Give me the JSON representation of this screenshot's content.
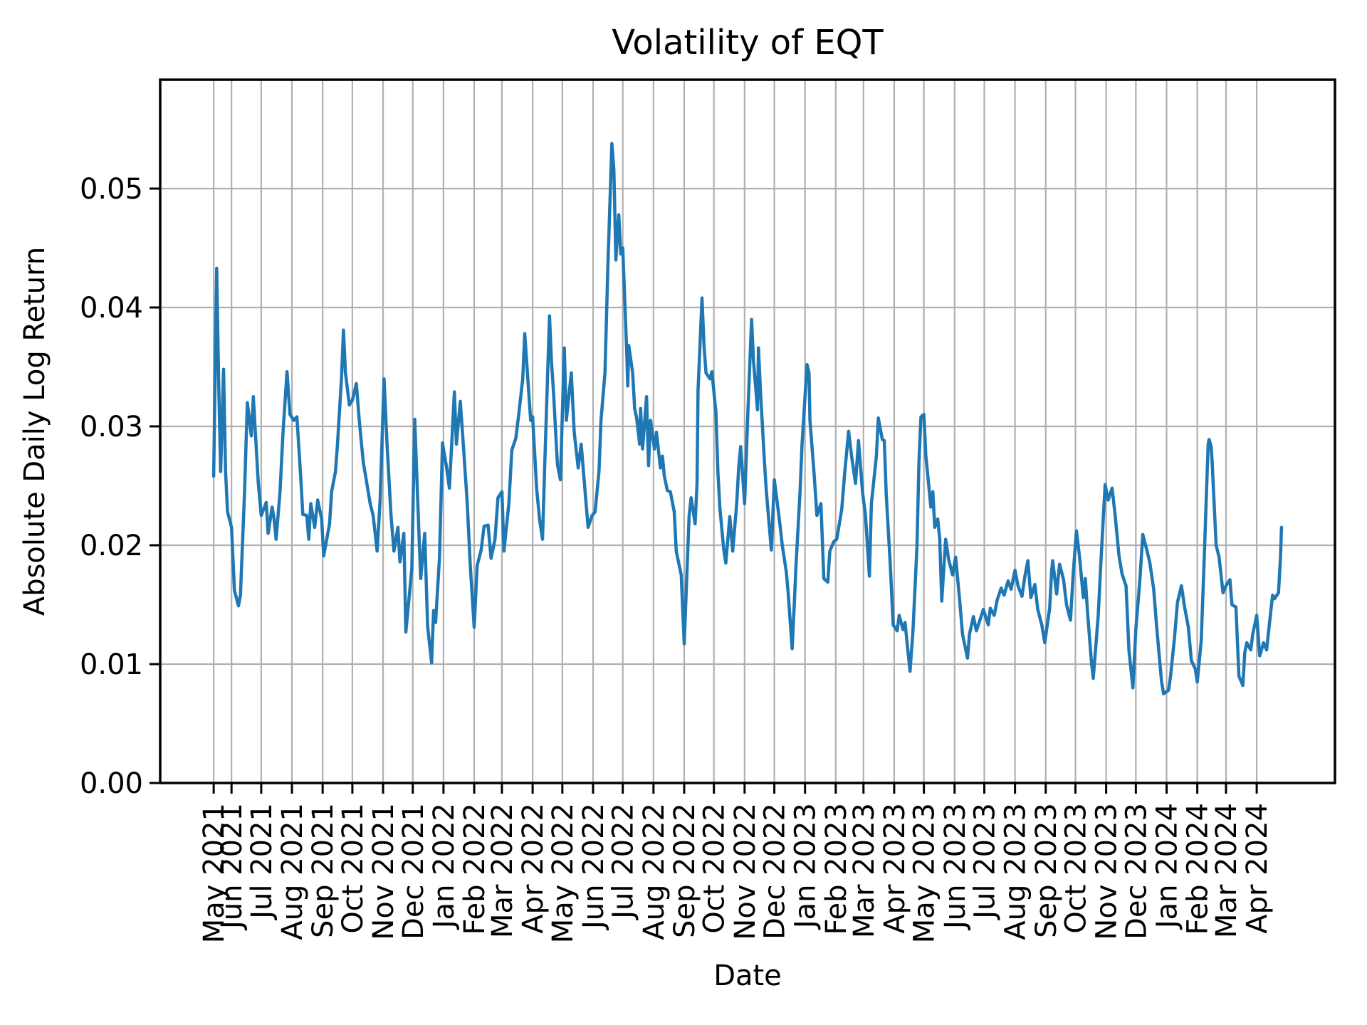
{
  "figure": {
    "title": "Volatility of EQT",
    "x_axis_label": "Date",
    "y_axis_label": "Absolute Daily Log Return"
  },
  "chart_data": {
    "type": "line",
    "title": "Volatility of EQT",
    "xlabel": "Date",
    "ylabel": "Absolute Daily Log Return",
    "grid": true,
    "legend": null,
    "line_color": "#1f77b4",
    "grid_color": "#b0b0b0",
    "axis_color": "#000000",
    "background_color": "#ffffff",
    "ylim": [
      0.0,
      0.05916
    ],
    "yticks": [
      0.0,
      0.01,
      0.02,
      0.03,
      0.04,
      0.05
    ],
    "ytick_labels": [
      "0.00",
      "0.01",
      "0.02",
      "0.03",
      "0.04",
      "0.05"
    ],
    "xlim_dates": [
      "2021-03-21",
      "2024-06-19"
    ],
    "xticks": [
      {
        "date": "2021-05-14",
        "label": "May 2021"
      },
      {
        "date": "2021-06-01",
        "label": "Jun 2021"
      },
      {
        "date": "2021-07-01",
        "label": "Jul 2021"
      },
      {
        "date": "2021-08-01",
        "label": "Aug 2021"
      },
      {
        "date": "2021-09-01",
        "label": "Sep 2021"
      },
      {
        "date": "2021-10-01",
        "label": "Oct 2021"
      },
      {
        "date": "2021-11-01",
        "label": "Nov 2021"
      },
      {
        "date": "2021-12-01",
        "label": "Dec 2021"
      },
      {
        "date": "2022-01-01",
        "label": "Jan 2022"
      },
      {
        "date": "2022-02-01",
        "label": "Feb 2022"
      },
      {
        "date": "2022-03-01",
        "label": "Mar 2022"
      },
      {
        "date": "2022-04-01",
        "label": "Apr 2022"
      },
      {
        "date": "2022-05-01",
        "label": "May 2022"
      },
      {
        "date": "2022-06-01",
        "label": "Jun 2022"
      },
      {
        "date": "2022-07-01",
        "label": "Jul 2022"
      },
      {
        "date": "2022-08-01",
        "label": "Aug 2022"
      },
      {
        "date": "2022-09-01",
        "label": "Sep 2022"
      },
      {
        "date": "2022-10-01",
        "label": "Oct 2022"
      },
      {
        "date": "2022-11-01",
        "label": "Nov 2022"
      },
      {
        "date": "2022-12-01",
        "label": "Dec 2022"
      },
      {
        "date": "2023-01-01",
        "label": "Jan 2023"
      },
      {
        "date": "2023-02-01",
        "label": "Feb 2023"
      },
      {
        "date": "2023-03-01",
        "label": "Mar 2023"
      },
      {
        "date": "2023-04-01",
        "label": "Apr 2023"
      },
      {
        "date": "2023-05-01",
        "label": "May 2023"
      },
      {
        "date": "2023-06-01",
        "label": "Jun 2023"
      },
      {
        "date": "2023-07-01",
        "label": "Jul 2023"
      },
      {
        "date": "2023-08-01",
        "label": "Aug 2023"
      },
      {
        "date": "2023-09-01",
        "label": "Sep 2023"
      },
      {
        "date": "2023-10-01",
        "label": "Oct 2023"
      },
      {
        "date": "2023-11-01",
        "label": "Nov 2023"
      },
      {
        "date": "2023-12-01",
        "label": "Dec 2023"
      },
      {
        "date": "2024-01-01",
        "label": "Jan 2024"
      },
      {
        "date": "2024-02-01",
        "label": "Feb 2024"
      },
      {
        "date": "2024-03-01",
        "label": "Mar 2024"
      },
      {
        "date": "2024-04-01",
        "label": "Apr 2024"
      }
    ],
    "series": [
      {
        "name": "EQT absolute daily log return",
        "color": "#1f77b4",
        "dates": [
          "2021-05-14",
          "2021-05-17",
          "2021-05-19",
          "2021-05-21",
          "2021-05-24",
          "2021-05-26",
          "2021-05-28",
          "2021-06-01",
          "2021-06-04",
          "2021-06-08",
          "2021-06-10",
          "2021-06-14",
          "2021-06-17",
          "2021-06-21",
          "2021-06-23",
          "2021-06-28",
          "2021-07-01",
          "2021-07-06",
          "2021-07-08",
          "2021-07-12",
          "2021-07-14",
          "2021-07-16",
          "2021-07-20",
          "2021-07-23",
          "2021-07-27",
          "2021-07-30",
          "2021-08-03",
          "2021-08-06",
          "2021-08-10",
          "2021-08-12",
          "2021-08-16",
          "2021-08-18",
          "2021-08-20",
          "2021-08-24",
          "2021-08-27",
          "2021-08-31",
          "2021-09-02",
          "2021-09-08",
          "2021-09-10",
          "2021-09-14",
          "2021-09-16",
          "2021-09-20",
          "2021-09-22",
          "2021-09-24",
          "2021-09-28",
          "2021-10-01",
          "2021-10-05",
          "2021-10-08",
          "2021-10-12",
          "2021-10-15",
          "2021-10-19",
          "2021-10-22",
          "2021-10-26",
          "2021-10-29",
          "2021-11-02",
          "2021-11-05",
          "2021-11-09",
          "2021-11-12",
          "2021-11-16",
          "2021-11-18",
          "2021-11-22",
          "2021-11-24",
          "2021-11-30",
          "2021-12-03",
          "2021-12-07",
          "2021-12-09",
          "2021-12-13",
          "2021-12-16",
          "2021-12-20",
          "2021-12-22",
          "2021-12-24",
          "2021-12-28",
          "2021-12-31",
          "2022-01-04",
          "2022-01-07",
          "2022-01-12",
          "2022-01-14",
          "2022-01-18",
          "2022-01-21",
          "2022-01-25",
          "2022-01-28",
          "2022-02-01",
          "2022-02-04",
          "2022-02-08",
          "2022-02-11",
          "2022-02-15",
          "2022-02-18",
          "2022-02-22",
          "2022-02-25",
          "2022-03-01",
          "2022-03-03",
          "2022-03-08",
          "2022-03-11",
          "2022-03-15",
          "2022-03-18",
          "2022-03-22",
          "2022-03-24",
          "2022-03-28",
          "2022-03-30",
          "2022-04-01",
          "2022-04-05",
          "2022-04-08",
          "2022-04-11",
          "2022-04-13",
          "2022-04-18",
          "2022-04-20",
          "2022-04-22",
          "2022-04-26",
          "2022-04-29",
          "2022-05-03",
          "2022-05-05",
          "2022-05-10",
          "2022-05-13",
          "2022-05-17",
          "2022-05-20",
          "2022-05-24",
          "2022-05-27",
          "2022-05-31",
          "2022-06-03",
          "2022-06-07",
          "2022-06-09",
          "2022-06-13",
          "2022-06-16",
          "2022-06-20",
          "2022-06-22",
          "2022-06-24",
          "2022-06-27",
          "2022-06-29",
          "2022-07-01",
          "2022-07-05",
          "2022-07-06",
          "2022-07-07",
          "2022-07-11",
          "2022-07-13",
          "2022-07-15",
          "2022-07-18",
          "2022-07-19",
          "2022-07-21",
          "2022-07-25",
          "2022-07-27",
          "2022-07-29",
          "2022-08-02",
          "2022-08-04",
          "2022-08-08",
          "2022-08-10",
          "2022-08-12",
          "2022-08-15",
          "2022-08-18",
          "2022-08-22",
          "2022-08-24",
          "2022-08-29",
          "2022-09-01",
          "2022-09-06",
          "2022-09-08",
          "2022-09-12",
          "2022-09-14",
          "2022-09-15",
          "2022-09-19",
          "2022-09-21",
          "2022-09-23",
          "2022-09-27",
          "2022-09-29",
          "2022-10-03",
          "2022-10-05",
          "2022-10-07",
          "2022-10-11",
          "2022-10-13",
          "2022-10-17",
          "2022-10-20",
          "2022-10-24",
          "2022-10-26",
          "2022-10-28",
          "2022-11-01",
          "2022-11-04",
          "2022-11-08",
          "2022-11-10",
          "2022-11-14",
          "2022-11-15",
          "2022-11-17",
          "2022-11-21",
          "2022-11-23",
          "2022-11-25",
          "2022-11-28",
          "2022-12-01",
          "2022-12-05",
          "2022-12-07",
          "2022-12-09",
          "2022-12-13",
          "2022-12-15",
          "2022-12-19",
          "2022-12-21",
          "2022-12-23",
          "2022-12-27",
          "2022-12-29",
          "2023-01-03",
          "2023-01-05",
          "2023-01-06",
          "2023-01-10",
          "2023-01-13",
          "2023-01-17",
          "2023-01-20",
          "2023-01-24",
          "2023-01-26",
          "2023-01-30",
          "2023-02-02",
          "2023-02-07",
          "2023-02-10",
          "2023-02-14",
          "2023-02-17",
          "2023-02-21",
          "2023-02-24",
          "2023-02-28",
          "2023-03-03",
          "2023-03-07",
          "2023-03-09",
          "2023-03-14",
          "2023-03-16",
          "2023-03-20",
          "2023-03-22",
          "2023-03-24",
          "2023-03-28",
          "2023-03-31",
          "2023-04-04",
          "2023-04-06",
          "2023-04-10",
          "2023-04-12",
          "2023-04-14",
          "2023-04-17",
          "2023-04-20",
          "2023-04-24",
          "2023-04-26",
          "2023-04-28",
          "2023-05-01",
          "2023-05-03",
          "2023-05-05",
          "2023-05-08",
          "2023-05-10",
          "2023-05-12",
          "2023-05-15",
          "2023-05-17",
          "2023-05-19",
          "2023-05-23",
          "2023-05-26",
          "2023-05-30",
          "2023-06-02",
          "2023-06-06",
          "2023-06-09",
          "2023-06-14",
          "2023-06-16",
          "2023-06-20",
          "2023-06-23",
          "2023-06-27",
          "2023-06-30",
          "2023-07-05",
          "2023-07-07",
          "2023-07-11",
          "2023-07-14",
          "2023-07-18",
          "2023-07-21",
          "2023-07-25",
          "2023-07-28",
          "2023-08-01",
          "2023-08-04",
          "2023-08-08",
          "2023-08-11",
          "2023-08-14",
          "2023-08-17",
          "2023-08-21",
          "2023-08-24",
          "2023-08-28",
          "2023-08-31",
          "2023-09-05",
          "2023-09-07",
          "2023-09-08",
          "2023-09-12",
          "2023-09-15",
          "2023-09-19",
          "2023-09-22",
          "2023-09-26",
          "2023-09-29",
          "2023-10-02",
          "2023-10-05",
          "2023-10-09",
          "2023-10-11",
          "2023-10-13",
          "2023-10-17",
          "2023-10-19",
          "2023-10-24",
          "2023-10-27",
          "2023-10-31",
          "2023-11-03",
          "2023-11-07",
          "2023-11-10",
          "2023-11-14",
          "2023-11-17",
          "2023-11-21",
          "2023-11-22",
          "2023-11-24",
          "2023-11-28",
          "2023-12-01",
          "2023-12-05",
          "2023-12-08",
          "2023-12-12",
          "2023-12-15",
          "2023-12-19",
          "2023-12-22",
          "2023-12-27",
          "2023-12-29",
          "2024-01-03",
          "2024-01-05",
          "2024-01-09",
          "2024-01-12",
          "2024-01-16",
          "2024-01-19",
          "2024-01-23",
          "2024-01-26",
          "2024-01-30",
          "2024-02-01",
          "2024-02-05",
          "2024-02-08",
          "2024-02-12",
          "2024-02-13",
          "2024-02-15",
          "2024-02-16",
          "2024-02-20",
          "2024-02-23",
          "2024-02-27",
          "2024-03-01",
          "2024-03-05",
          "2024-03-07",
          "2024-03-11",
          "2024-03-14",
          "2024-03-18",
          "2024-03-20",
          "2024-03-22",
          "2024-03-26",
          "2024-03-28",
          "2024-04-01",
          "2024-04-04",
          "2024-04-08",
          "2024-04-11",
          "2024-04-15",
          "2024-04-17",
          "2024-04-19",
          "2024-04-23",
          "2024-04-25",
          "2024-04-26"
        ],
        "values": [
          0.0258,
          0.0433,
          0.0338,
          0.0262,
          0.0348,
          0.0262,
          0.0228,
          0.0215,
          0.0162,
          0.0149,
          0.0158,
          0.0242,
          0.032,
          0.0292,
          0.0325,
          0.0253,
          0.0225,
          0.0236,
          0.021,
          0.0232,
          0.0222,
          0.0205,
          0.0245,
          0.0295,
          0.0346,
          0.031,
          0.0305,
          0.0308,
          0.0255,
          0.0226,
          0.0225,
          0.0205,
          0.0235,
          0.0215,
          0.0238,
          0.0222,
          0.0191,
          0.0218,
          0.0245,
          0.0262,
          0.0285,
          0.034,
          0.0381,
          0.0345,
          0.0318,
          0.0322,
          0.0336,
          0.0305,
          0.027,
          0.0255,
          0.0235,
          0.0225,
          0.0195,
          0.0238,
          0.034,
          0.0285,
          0.0225,
          0.0195,
          0.0215,
          0.0186,
          0.021,
          0.0127,
          0.018,
          0.0306,
          0.0215,
          0.0172,
          0.021,
          0.0132,
          0.0101,
          0.0145,
          0.0135,
          0.019,
          0.0286,
          0.0266,
          0.0248,
          0.0329,
          0.0285,
          0.0321,
          0.0285,
          0.0235,
          0.0183,
          0.0131,
          0.0183,
          0.0196,
          0.0216,
          0.0217,
          0.0189,
          0.0205,
          0.024,
          0.0245,
          0.0195,
          0.0235,
          0.028,
          0.029,
          0.031,
          0.034,
          0.0378,
          0.033,
          0.0305,
          0.0308,
          0.0248,
          0.0222,
          0.0205,
          0.0262,
          0.0393,
          0.0355,
          0.033,
          0.0268,
          0.0255,
          0.0366,
          0.0305,
          0.0345,
          0.0295,
          0.0265,
          0.0285,
          0.0245,
          0.0215,
          0.0225,
          0.0228,
          0.0262,
          0.0305,
          0.0345,
          0.0435,
          0.0538,
          0.0516,
          0.044,
          0.0478,
          0.0445,
          0.045,
          0.0362,
          0.0334,
          0.0368,
          0.0345,
          0.0315,
          0.0307,
          0.0285,
          0.0315,
          0.0281,
          0.0325,
          0.0267,
          0.0305,
          0.0281,
          0.0295,
          0.0265,
          0.0275,
          0.0258,
          0.0246,
          0.0245,
          0.0228,
          0.0195,
          0.0175,
          0.0117,
          0.0225,
          0.024,
          0.0218,
          0.0252,
          0.033,
          0.0408,
          0.0368,
          0.0345,
          0.034,
          0.0346,
          0.0312,
          0.0262,
          0.0232,
          0.0196,
          0.0185,
          0.0224,
          0.0195,
          0.0235,
          0.0265,
          0.0283,
          0.0235,
          0.0305,
          0.039,
          0.0355,
          0.0314,
          0.0366,
          0.033,
          0.027,
          0.0245,
          0.0225,
          0.0196,
          0.0255,
          0.0229,
          0.0215,
          0.02,
          0.0178,
          0.016,
          0.0113,
          0.0148,
          0.0185,
          0.0245,
          0.0285,
          0.0352,
          0.0345,
          0.0305,
          0.0262,
          0.0225,
          0.0235,
          0.0172,
          0.0169,
          0.0195,
          0.0203,
          0.0205,
          0.023,
          0.026,
          0.0296,
          0.0275,
          0.0252,
          0.0288,
          0.0245,
          0.0225,
          0.0174,
          0.0235,
          0.0275,
          0.0307,
          0.0289,
          0.0288,
          0.0242,
          0.0185,
          0.0133,
          0.0128,
          0.0141,
          0.0129,
          0.0135,
          0.0118,
          0.0094,
          0.0128,
          0.0199,
          0.027,
          0.0308,
          0.031,
          0.0275,
          0.0258,
          0.0232,
          0.0245,
          0.0215,
          0.0222,
          0.0205,
          0.0153,
          0.0205,
          0.0188,
          0.0175,
          0.019,
          0.0155,
          0.0125,
          0.0105,
          0.0125,
          0.014,
          0.0128,
          0.0138,
          0.0146,
          0.0133,
          0.0147,
          0.0141,
          0.0154,
          0.0164,
          0.0158,
          0.017,
          0.0163,
          0.0179,
          0.0166,
          0.0157,
          0.0174,
          0.0187,
          0.0156,
          0.0167,
          0.0146,
          0.0133,
          0.0118,
          0.0147,
          0.0179,
          0.0187,
          0.0159,
          0.0184,
          0.0171,
          0.015,
          0.0137,
          0.0179,
          0.0212,
          0.0191,
          0.0156,
          0.0172,
          0.0146,
          0.0103,
          0.0088,
          0.0141,
          0.0191,
          0.0251,
          0.0238,
          0.0248,
          0.0226,
          0.0191,
          0.0176,
          0.0166,
          0.015,
          0.0112,
          0.008,
          0.013,
          0.017,
          0.0209,
          0.0196,
          0.0186,
          0.0163,
          0.0131,
          0.0085,
          0.0075,
          0.0078,
          0.009,
          0.0122,
          0.0152,
          0.0166,
          0.0149,
          0.0131,
          0.0103,
          0.0096,
          0.0085,
          0.012,
          0.019,
          0.0285,
          0.0289,
          0.0283,
          0.027,
          0.02,
          0.019,
          0.016,
          0.0166,
          0.0171,
          0.015,
          0.0148,
          0.009,
          0.0082,
          0.011,
          0.0118,
          0.0112,
          0.0125,
          0.0141,
          0.0107,
          0.0118,
          0.0112,
          0.0143,
          0.0158,
          0.0155,
          0.016,
          0.019,
          0.0215
        ]
      }
    ]
  }
}
